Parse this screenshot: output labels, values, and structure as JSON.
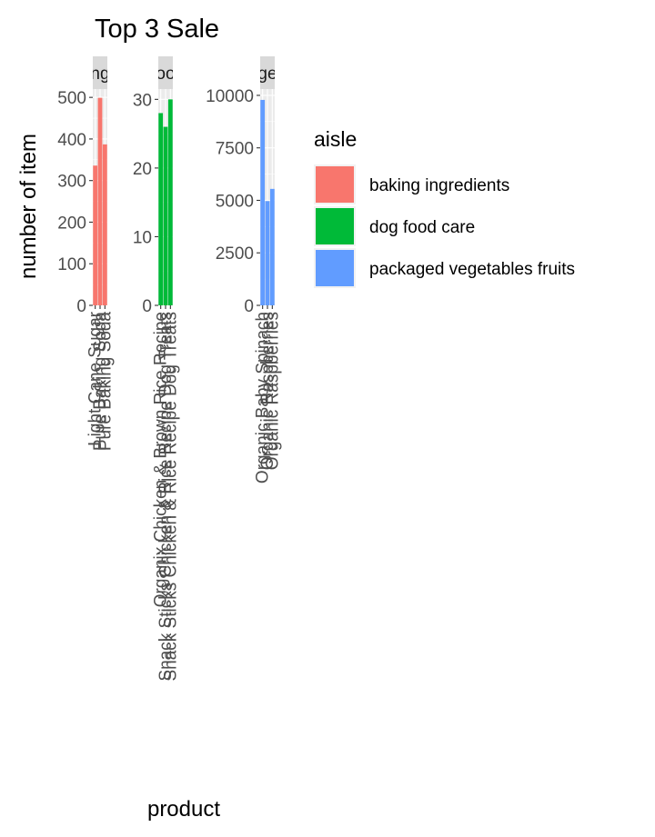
{
  "chart_data": {
    "type": "bar",
    "title": "Top 3 Sale",
    "xlabel": "product",
    "ylabel": "number of item",
    "grid": true,
    "legend": {
      "title": "aisle",
      "position": "right",
      "entries": [
        {
          "name": "baking ingredients",
          "color": "#F8766D"
        },
        {
          "name": "dog food care",
          "color": "#00BA38"
        },
        {
          "name": "packaged vegetables fruits",
          "color": "#619CFF"
        }
      ]
    },
    "facets": [
      {
        "strip": "baking ingredients",
        "strip_visible": "ng",
        "color": "#F8766D",
        "ylim": [
          0,
          520
        ],
        "yticks": [
          0,
          100,
          200,
          300,
          400,
          500
        ],
        "categories": [
          "Light Cane Sugar",
          "Pure Baking Soda",
          "Pure Baking Soda"
        ],
        "values": [
          336,
          499,
          387
        ]
      },
      {
        "strip": "dog food care",
        "strip_visible": "oo",
        "color": "#00BA38",
        "ylim": [
          0,
          31.5
        ],
        "yticks": [
          0,
          10,
          20,
          30
        ],
        "categories": [
          "Organix Chicken & Brown Rice Recipe",
          "Snack Sticks Chicken & Rice Recipe Dog Treats",
          "Snack Sticks Chicken & Rice Recipe Dog Treats"
        ],
        "values": [
          28,
          26,
          30
        ]
      },
      {
        "strip": "packaged vegetables fruits",
        "strip_visible": "ge",
        "color": "#619CFF",
        "ylim": [
          0,
          10300
        ],
        "yticks": [
          0,
          2500,
          5000,
          7500,
          10000
        ],
        "categories": [
          "Organic Baby Spinach",
          "Organic Raspberries",
          "Organic Raspberries"
        ],
        "values": [
          9784,
          4966,
          5546
        ]
      }
    ]
  }
}
